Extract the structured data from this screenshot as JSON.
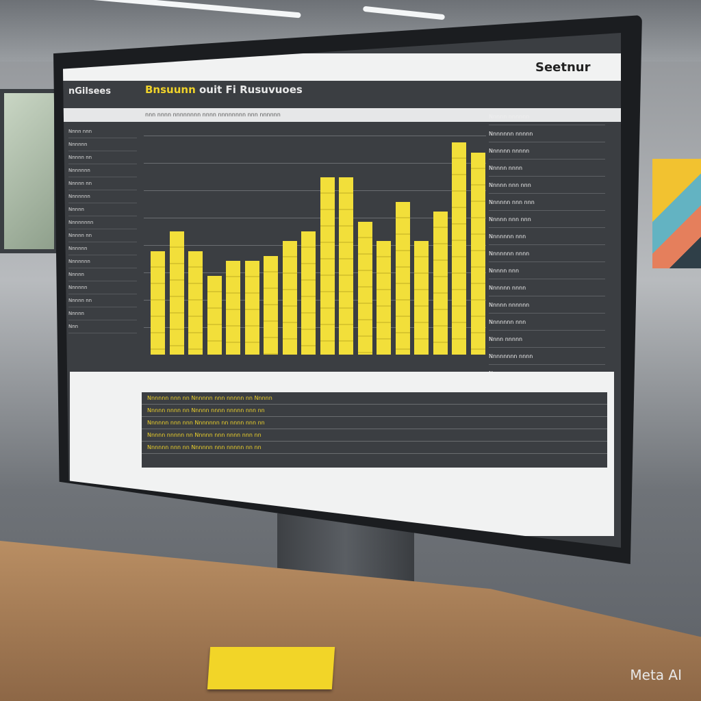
{
  "screen": {
    "brand": "Seetnur",
    "logo_text": "nGilsees",
    "title_highlight": "Bnsuunn",
    "title_rest": "ouit Fi Rusuvuoes",
    "subheader": "nnn nnnn nnnnnnnn nnnn nnnnnnnn nnn nnnnnn",
    "sidebar_items": [
      "Nnnn nnn",
      "Nnnnnn",
      "Nnnnn nn",
      "Nnnnnnn",
      "Nnnnn nn",
      "Nnnnnnn",
      "Nnnnn",
      "Nnnnnnnn",
      "Nnnnn nn",
      "Nnnnnn",
      "Nnnnnnn",
      "Nnnnn",
      "Nnnnnn",
      "Nnnnn nn",
      "Nnnnn",
      "Nnn"
    ],
    "right_panel_items": [
      "Nnnnn nnnnnn",
      "Nnnnnnn nnnnn",
      "Nnnnnn nnnnn",
      "Nnnnn nnnn",
      "Nnnnn nnn nnn",
      "Nnnnnn nnn nnn",
      "Nnnnn nnn nnn",
      "Nnnnnnn nnn",
      "Nnnnnnn nnnn",
      "Nnnnn nnn",
      "Nnnnnn nnnn",
      "Nnnnn nnnnnn",
      "Nnnnnnn nnn",
      "Nnnn nnnnn",
      "Nnnnnnnn nnnn",
      "Nnnn nnn"
    ],
    "bar_levels": [
      0.42,
      0.5,
      0.42,
      0.32,
      0.38,
      0.38,
      0.4,
      0.46,
      0.5,
      0.72,
      0.72,
      0.54,
      0.46,
      0.62,
      0.46,
      0.58,
      0.86,
      0.82
    ],
    "table_rows": [
      "Nnnnnn  nnn  nn   Nnnnnn  nnn   nnnnn  nn   Nnnnn",
      "Nnnnn  nnnn  nn   Nnnnn  nnnn  nnnnn  nnn   nn",
      "Nnnnnn  nnn  nnn  Nnnnnnn  nn   nnnn  nnn   nn",
      "Nnnnn  nnnnn  nn  Nnnnn  nnn  nnnn  nnn   nn",
      "Nnnnnn  nnn  nn   Nnnnnn  nnn  nnnnn  nn   nn"
    ],
    "accent_color": "#f0d32a"
  },
  "watermark": "Meta AI"
}
